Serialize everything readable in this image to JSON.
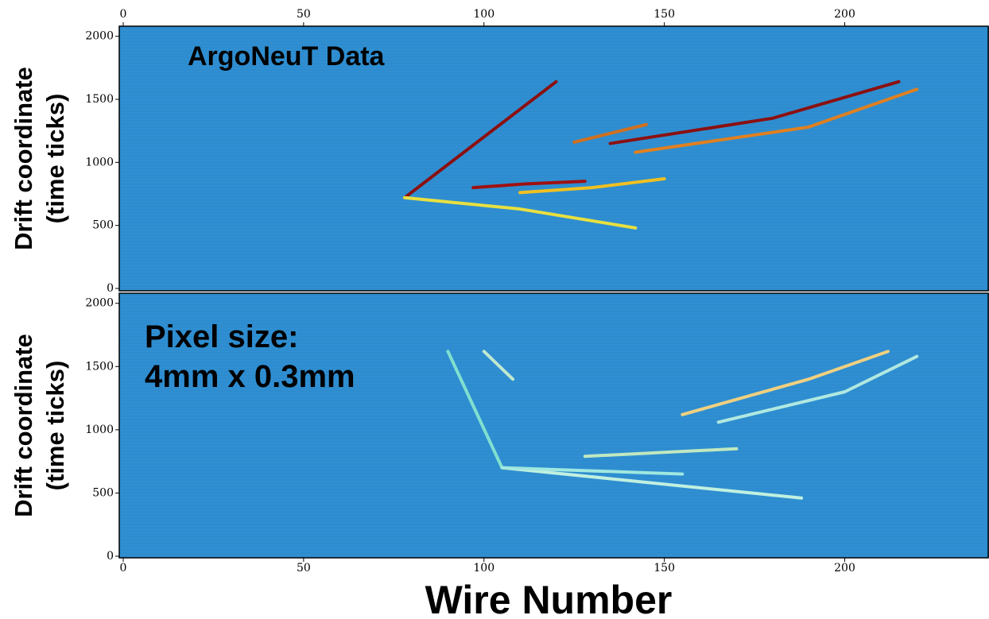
{
  "chart_data": [
    {
      "type": "line",
      "xaxis": "top",
      "background": "#2f8fd2",
      "ylabel": [
        "Drift coordinate",
        "(time ticks)"
      ],
      "annotations": [
        "ArgoNeuT Data"
      ],
      "xlim": [
        0,
        240
      ],
      "ylim": [
        0,
        2080
      ],
      "xticks": [
        0,
        50,
        100,
        150,
        200
      ],
      "yticks": [
        0,
        500,
        1000,
        1500,
        2000
      ],
      "series": [
        {
          "color": "#8b1010",
          "x": [
            78,
            120
          ],
          "values": [
            720,
            1640
          ]
        },
        {
          "color": "#e8e040",
          "x": [
            78,
            110,
            142
          ],
          "values": [
            720,
            630,
            480
          ]
        },
        {
          "color": "#a01010",
          "x": [
            97,
            112,
            128
          ],
          "values": [
            800,
            830,
            850
          ]
        },
        {
          "color": "#f0c020",
          "x": [
            110,
            130,
            150
          ],
          "values": [
            760,
            800,
            870
          ]
        },
        {
          "color": "#d07020",
          "x": [
            125,
            145
          ],
          "values": [
            1160,
            1300
          ]
        },
        {
          "color": "#8b1010",
          "x": [
            135,
            180,
            215
          ],
          "values": [
            1150,
            1350,
            1640
          ]
        },
        {
          "color": "#e08020",
          "x": [
            142,
            190,
            220
          ],
          "values": [
            1080,
            1280,
            1580
          ]
        }
      ]
    },
    {
      "type": "line",
      "xaxis": "bottom",
      "background": "#2f8fd2",
      "ylabel": [
        "Drift coordinate",
        "(time ticks)"
      ],
      "xlabel": "Wire Number",
      "annotations": [
        "Pixel size:",
        "4mm x 0.3mm"
      ],
      "xlim": [
        0,
        240
      ],
      "ylim": [
        0,
        2080
      ],
      "xticks": [
        0,
        50,
        100,
        150,
        200
      ],
      "yticks": [
        0,
        500,
        1000,
        1500,
        2000
      ],
      "series": [
        {
          "color": "#80e0d0",
          "x": [
            90,
            105
          ],
          "values": [
            1620,
            700
          ]
        },
        {
          "color": "#c0f0e0",
          "x": [
            105,
            188
          ],
          "values": [
            700,
            460
          ]
        },
        {
          "color": "#a0e8e0",
          "x": [
            105,
            155
          ],
          "values": [
            700,
            650
          ]
        },
        {
          "color": "#c0e8c0",
          "x": [
            128,
            170
          ],
          "values": [
            790,
            850
          ]
        },
        {
          "color": "#c0e8d0",
          "x": [
            100,
            108
          ],
          "values": [
            1620,
            1400
          ]
        },
        {
          "color": "#f0d080",
          "x": [
            155,
            190,
            212
          ],
          "values": [
            1120,
            1400,
            1620
          ]
        },
        {
          "color": "#b0e8e0",
          "x": [
            165,
            200,
            220
          ],
          "values": [
            1060,
            1300,
            1580
          ]
        }
      ]
    }
  ]
}
